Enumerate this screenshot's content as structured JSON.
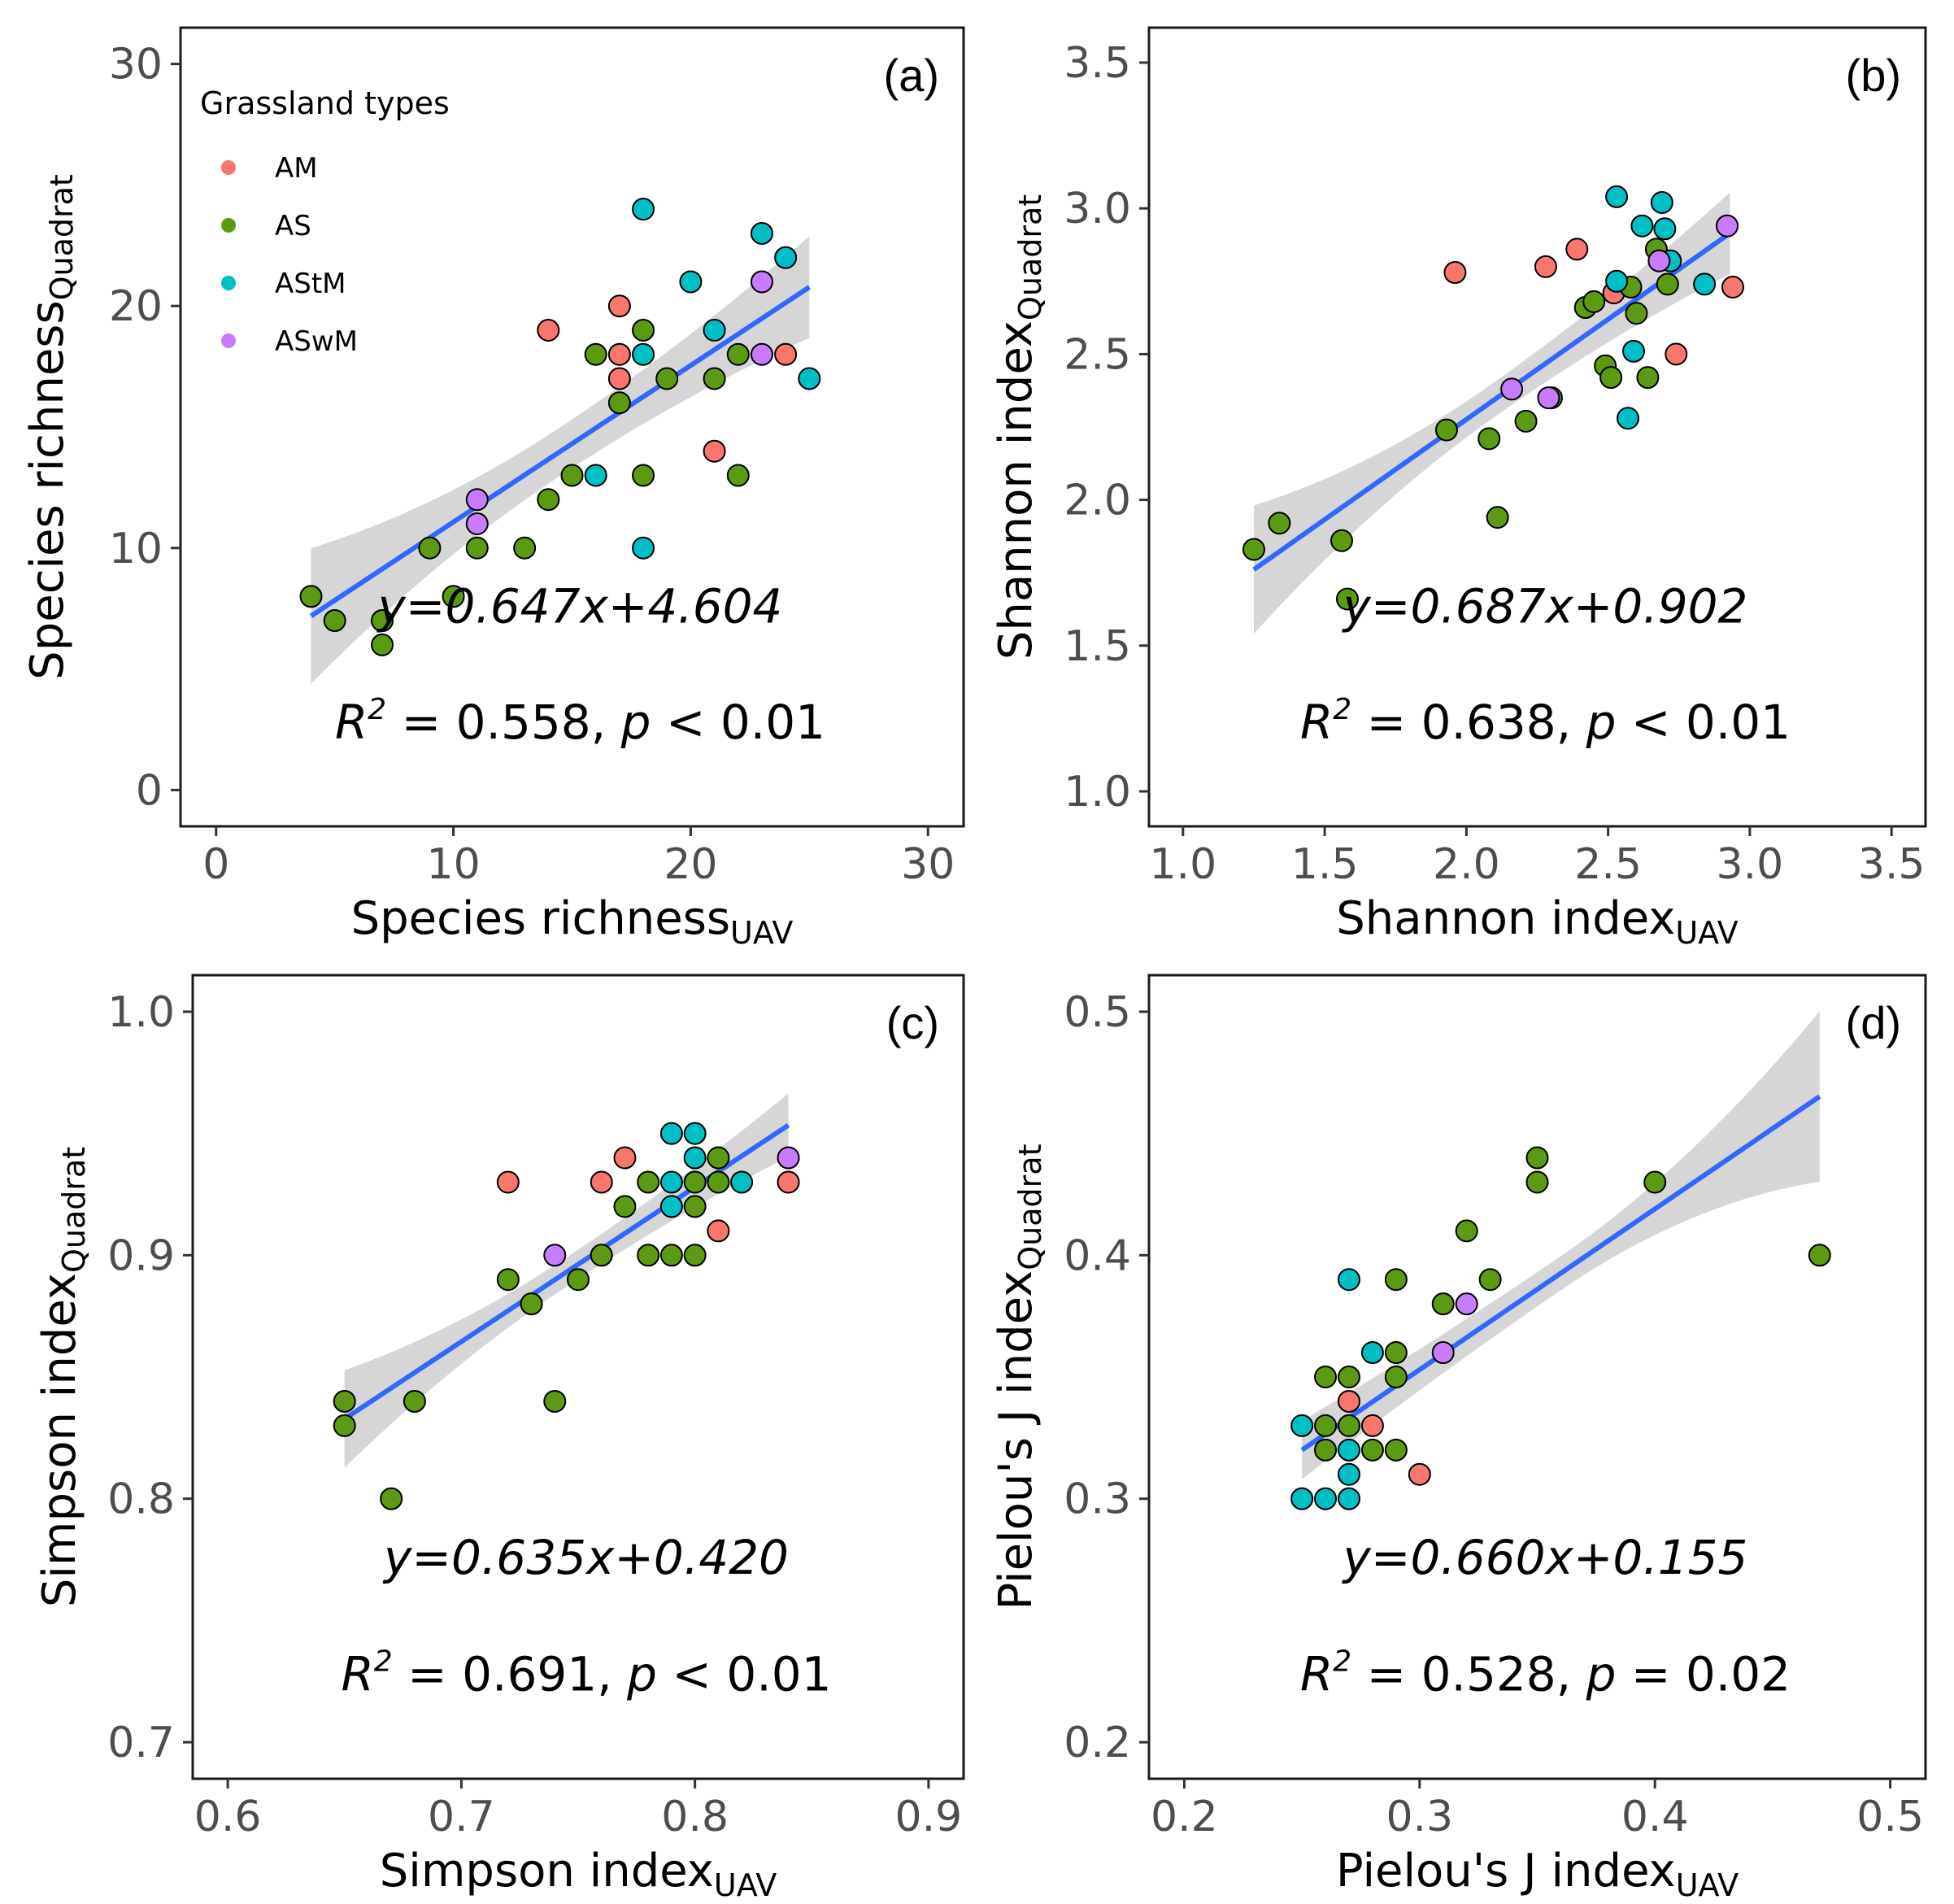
{
  "colors": {
    "AM": "#F8766D",
    "AS": "#5C9A14",
    "AStM": "#00BFC4",
    "ASwM": "#C77CFF",
    "fit": "#3366FF",
    "band": "#bdbdbd"
  },
  "legend": {
    "title": "Grassland types",
    "items": [
      "AM",
      "AS",
      "AStM",
      "ASwM"
    ]
  },
  "chart_data": [
    {
      "type": "scatter",
      "panel": "(a)",
      "xlabel": "Species richness",
      "xlabel_sub": "UAV",
      "ylabel": "Species richness",
      "ylabel_sub": "Quadrat",
      "xlim": [
        -1.5,
        31.5
      ],
      "ylim": [
        -1.5,
        31.5
      ],
      "xticks": [
        0,
        10,
        20,
        30
      ],
      "yticks": [
        0,
        10,
        20,
        30
      ],
      "x_tick_labels": [
        "0",
        "10",
        "20",
        "30"
      ],
      "y_tick_labels": [
        "0",
        "10",
        "20",
        "30"
      ],
      "equation": "y=0.647x+4.604",
      "stats": {
        "r2_label": "R",
        "r2_sup": "2",
        "r2_text": " = 0.558, ",
        "p_label": "p",
        "p_text": " < 0.01"
      },
      "fit": {
        "slope": 0.647,
        "intercept": 4.604,
        "x_range": [
          4,
          25
        ]
      },
      "band_halfwidth": [
        2.8,
        1.0,
        2.1
      ],
      "points": [
        {
          "x": 14,
          "y": 19,
          "type": "AM"
        },
        {
          "x": 17,
          "y": 20,
          "type": "AM"
        },
        {
          "x": 17,
          "y": 18,
          "type": "AM"
        },
        {
          "x": 17,
          "y": 17,
          "type": "AM"
        },
        {
          "x": 21,
          "y": 14,
          "type": "AM"
        },
        {
          "x": 24,
          "y": 18,
          "type": "AM"
        },
        {
          "x": 4,
          "y": 8,
          "type": "AS"
        },
        {
          "x": 5,
          "y": 7,
          "type": "AS"
        },
        {
          "x": 7,
          "y": 7,
          "type": "AS"
        },
        {
          "x": 7,
          "y": 6,
          "type": "AS"
        },
        {
          "x": 9,
          "y": 10,
          "type": "AS"
        },
        {
          "x": 10,
          "y": 8,
          "type": "AS"
        },
        {
          "x": 11,
          "y": 10,
          "type": "AS"
        },
        {
          "x": 13,
          "y": 10,
          "type": "AS"
        },
        {
          "x": 14,
          "y": 12,
          "type": "AS"
        },
        {
          "x": 15,
          "y": 13,
          "type": "AS"
        },
        {
          "x": 16,
          "y": 18,
          "type": "AS"
        },
        {
          "x": 17,
          "y": 16,
          "type": "AS"
        },
        {
          "x": 18,
          "y": 19,
          "type": "AS"
        },
        {
          "x": 18,
          "y": 13,
          "type": "AS"
        },
        {
          "x": 19,
          "y": 17,
          "type": "AS"
        },
        {
          "x": 21,
          "y": 17,
          "type": "AS"
        },
        {
          "x": 22,
          "y": 18,
          "type": "AS"
        },
        {
          "x": 22,
          "y": 13,
          "type": "AS"
        },
        {
          "x": 16,
          "y": 13,
          "type": "AStM"
        },
        {
          "x": 18,
          "y": 24,
          "type": "AStM"
        },
        {
          "x": 18,
          "y": 18,
          "type": "AStM"
        },
        {
          "x": 18,
          "y": 10,
          "type": "AStM"
        },
        {
          "x": 20,
          "y": 21,
          "type": "AStM"
        },
        {
          "x": 21,
          "y": 19,
          "type": "AStM"
        },
        {
          "x": 23,
          "y": 23,
          "type": "AStM"
        },
        {
          "x": 24,
          "y": 22,
          "type": "AStM"
        },
        {
          "x": 25,
          "y": 17,
          "type": "AStM"
        },
        {
          "x": 11,
          "y": 12,
          "type": "ASwM"
        },
        {
          "x": 11,
          "y": 11,
          "type": "ASwM"
        },
        {
          "x": 23,
          "y": 21,
          "type": "ASwM"
        },
        {
          "x": 23,
          "y": 18,
          "type": "ASwM"
        }
      ]
    },
    {
      "type": "scatter",
      "panel": "(b)",
      "xlabel": "Shannon index",
      "xlabel_sub": "UAV",
      "ylabel": "Shannon index",
      "ylabel_sub": "Quadrat",
      "xlim": [
        0.88,
        3.62
      ],
      "ylim": [
        0.88,
        3.62
      ],
      "xticks": [
        1.0,
        1.5,
        2.0,
        2.5,
        3.0,
        3.5
      ],
      "yticks": [
        1.0,
        1.5,
        2.0,
        2.5,
        3.0,
        3.5
      ],
      "x_tick_labels": [
        "1.0",
        "1.5",
        "2.0",
        "2.5",
        "3.0",
        "3.5"
      ],
      "y_tick_labels": [
        "1.0",
        "1.5",
        "2.0",
        "2.5",
        "3.0",
        "3.5"
      ],
      "equation": "y=0.687x+0.902",
      "stats": {
        "r2_label": "R",
        "r2_sup": "2",
        "r2_text": " = 0.638, ",
        "p_label": "p",
        "p_text": " < 0.01"
      },
      "fit": {
        "slope": 0.687,
        "intercept": 0.902,
        "x_range": [
          1.25,
          2.93
        ]
      },
      "band_halfwidth": [
        0.22,
        0.06,
        0.14
      ],
      "points": [
        {
          "x": 1.96,
          "y": 2.78,
          "type": "AM"
        },
        {
          "x": 2.28,
          "y": 2.8,
          "type": "AM"
        },
        {
          "x": 2.39,
          "y": 2.86,
          "type": "AM"
        },
        {
          "x": 2.52,
          "y": 2.71,
          "type": "AM"
        },
        {
          "x": 2.74,
          "y": 2.5,
          "type": "AM"
        },
        {
          "x": 2.94,
          "y": 2.73,
          "type": "AM"
        },
        {
          "x": 1.25,
          "y": 1.83,
          "type": "AS"
        },
        {
          "x": 1.34,
          "y": 1.92,
          "type": "AS"
        },
        {
          "x": 1.56,
          "y": 1.86,
          "type": "AS"
        },
        {
          "x": 1.58,
          "y": 1.66,
          "type": "AS"
        },
        {
          "x": 1.93,
          "y": 2.24,
          "type": "AS"
        },
        {
          "x": 2.08,
          "y": 2.21,
          "type": "AS"
        },
        {
          "x": 2.11,
          "y": 1.94,
          "type": "AS"
        },
        {
          "x": 2.21,
          "y": 2.27,
          "type": "AS"
        },
        {
          "x": 2.3,
          "y": 2.35,
          "type": "AS"
        },
        {
          "x": 2.42,
          "y": 2.66,
          "type": "AS"
        },
        {
          "x": 2.45,
          "y": 2.68,
          "type": "AS"
        },
        {
          "x": 2.49,
          "y": 2.46,
          "type": "AS"
        },
        {
          "x": 2.51,
          "y": 2.42,
          "type": "AS"
        },
        {
          "x": 2.58,
          "y": 2.73,
          "type": "AS"
        },
        {
          "x": 2.6,
          "y": 2.64,
          "type": "AS"
        },
        {
          "x": 2.64,
          "y": 2.42,
          "type": "AS"
        },
        {
          "x": 2.67,
          "y": 2.86,
          "type": "AS"
        },
        {
          "x": 2.71,
          "y": 2.74,
          "type": "AS"
        },
        {
          "x": 2.53,
          "y": 3.04,
          "type": "AStM"
        },
        {
          "x": 2.53,
          "y": 2.75,
          "type": "AStM"
        },
        {
          "x": 2.57,
          "y": 2.28,
          "type": "AStM"
        },
        {
          "x": 2.59,
          "y": 2.51,
          "type": "AStM"
        },
        {
          "x": 2.62,
          "y": 2.94,
          "type": "AStM"
        },
        {
          "x": 2.69,
          "y": 3.02,
          "type": "AStM"
        },
        {
          "x": 2.7,
          "y": 2.93,
          "type": "AStM"
        },
        {
          "x": 2.72,
          "y": 2.82,
          "type": "AStM"
        },
        {
          "x": 2.84,
          "y": 2.74,
          "type": "AStM"
        },
        {
          "x": 2.16,
          "y": 2.38,
          "type": "ASwM"
        },
        {
          "x": 2.29,
          "y": 2.35,
          "type": "ASwM"
        },
        {
          "x": 2.68,
          "y": 2.82,
          "type": "ASwM"
        },
        {
          "x": 2.92,
          "y": 2.94,
          "type": "ASwM"
        }
      ]
    },
    {
      "type": "scatter",
      "panel": "(c)",
      "xlabel": "Simpson index",
      "xlabel_sub": "UAV",
      "ylabel": "Simpson index",
      "ylabel_sub": "Quadrat",
      "xlim": [
        0.585,
        0.915
      ],
      "ylim": [
        0.685,
        1.015
      ],
      "xticks": [
        0.6,
        0.7,
        0.8,
        0.9
      ],
      "yticks": [
        0.7,
        0.8,
        0.9,
        1.0
      ],
      "x_tick_labels": [
        "0.6",
        "0.7",
        "0.8",
        "0.9"
      ],
      "y_tick_labels": [
        "0.7",
        "0.8",
        "0.9",
        "1.0"
      ],
      "equation": "y=0.635x+0.420",
      "stats": {
        "r2_label": "R",
        "r2_sup": "2",
        "r2_text": " = 0.691, ",
        "p_label": "p",
        "p_text": " < 0.01"
      },
      "fit": {
        "slope": 0.635,
        "intercept": 0.42,
        "x_range": [
          0.65,
          0.84
        ]
      },
      "band_halfwidth": [
        0.02,
        0.006,
        0.013
      ],
      "points": [
        {
          "x": 0.72,
          "y": 0.93,
          "type": "AM"
        },
        {
          "x": 0.76,
          "y": 0.93,
          "type": "AM"
        },
        {
          "x": 0.77,
          "y": 0.94,
          "type": "AM"
        },
        {
          "x": 0.81,
          "y": 0.91,
          "type": "AM"
        },
        {
          "x": 0.84,
          "y": 0.93,
          "type": "AM"
        },
        {
          "x": 0.65,
          "y": 0.84,
          "type": "AS"
        },
        {
          "x": 0.65,
          "y": 0.83,
          "type": "AS"
        },
        {
          "x": 0.67,
          "y": 0.8,
          "type": "AS"
        },
        {
          "x": 0.68,
          "y": 0.84,
          "type": "AS"
        },
        {
          "x": 0.72,
          "y": 0.89,
          "type": "AS"
        },
        {
          "x": 0.73,
          "y": 0.88,
          "type": "AS"
        },
        {
          "x": 0.74,
          "y": 0.84,
          "type": "AS"
        },
        {
          "x": 0.75,
          "y": 0.89,
          "type": "AS"
        },
        {
          "x": 0.76,
          "y": 0.9,
          "type": "AS"
        },
        {
          "x": 0.77,
          "y": 0.92,
          "type": "AS"
        },
        {
          "x": 0.78,
          "y": 0.93,
          "type": "AS"
        },
        {
          "x": 0.78,
          "y": 0.9,
          "type": "AS"
        },
        {
          "x": 0.79,
          "y": 0.9,
          "type": "AS"
        },
        {
          "x": 0.8,
          "y": 0.93,
          "type": "AS"
        },
        {
          "x": 0.8,
          "y": 0.92,
          "type": "AS"
        },
        {
          "x": 0.8,
          "y": 0.9,
          "type": "AS"
        },
        {
          "x": 0.81,
          "y": 0.94,
          "type": "AS"
        },
        {
          "x": 0.81,
          "y": 0.93,
          "type": "AS"
        },
        {
          "x": 0.79,
          "y": 0.95,
          "type": "AStM"
        },
        {
          "x": 0.79,
          "y": 0.93,
          "type": "AStM"
        },
        {
          "x": 0.79,
          "y": 0.92,
          "type": "AStM"
        },
        {
          "x": 0.8,
          "y": 0.95,
          "type": "AStM"
        },
        {
          "x": 0.8,
          "y": 0.94,
          "type": "AStM"
        },
        {
          "x": 0.82,
          "y": 0.93,
          "type": "AStM"
        },
        {
          "x": 0.74,
          "y": 0.9,
          "type": "ASwM"
        },
        {
          "x": 0.84,
          "y": 0.94,
          "type": "ASwM"
        }
      ]
    },
    {
      "type": "scatter",
      "panel": "(d)",
      "xlabel": "Pielou's J index",
      "xlabel_sub": "UAV",
      "ylabel": "Pielou's J index",
      "ylabel_sub": "Quadrat",
      "xlim": [
        0.185,
        0.515
      ],
      "ylim": [
        0.185,
        0.515
      ],
      "xticks": [
        0.2,
        0.3,
        0.4,
        0.5
      ],
      "yticks": [
        0.2,
        0.3,
        0.4,
        0.5
      ],
      "x_tick_labels": [
        "0.2",
        "0.3",
        "0.4",
        "0.5"
      ],
      "y_tick_labels": [
        "0.2",
        "0.3",
        "0.4",
        "0.5"
      ],
      "equation": "y=0.660x+0.155",
      "stats": {
        "r2_label": "R",
        "r2_sup": "2",
        "r2_text": " = 0.528, ",
        "p_label": "p",
        "p_text": " = 0.02"
      },
      "fit": {
        "slope": 0.66,
        "intercept": 0.155,
        "x_range": [
          0.25,
          0.47
        ]
      },
      "band_halfwidth": [
        0.012,
        0.007,
        0.035
      ],
      "points": [
        {
          "x": 0.27,
          "y": 0.34,
          "type": "AM"
        },
        {
          "x": 0.28,
          "y": 0.33,
          "type": "AM"
        },
        {
          "x": 0.3,
          "y": 0.31,
          "type": "AM"
        },
        {
          "x": 0.26,
          "y": 0.35,
          "type": "AS"
        },
        {
          "x": 0.26,
          "y": 0.33,
          "type": "AS"
        },
        {
          "x": 0.26,
          "y": 0.32,
          "type": "AS"
        },
        {
          "x": 0.27,
          "y": 0.35,
          "type": "AS"
        },
        {
          "x": 0.27,
          "y": 0.33,
          "type": "AS"
        },
        {
          "x": 0.28,
          "y": 0.32,
          "type": "AS"
        },
        {
          "x": 0.29,
          "y": 0.39,
          "type": "AS"
        },
        {
          "x": 0.29,
          "y": 0.36,
          "type": "AS"
        },
        {
          "x": 0.29,
          "y": 0.35,
          "type": "AS"
        },
        {
          "x": 0.29,
          "y": 0.32,
          "type": "AS"
        },
        {
          "x": 0.31,
          "y": 0.38,
          "type": "AS"
        },
        {
          "x": 0.32,
          "y": 0.41,
          "type": "AS"
        },
        {
          "x": 0.33,
          "y": 0.39,
          "type": "AS"
        },
        {
          "x": 0.35,
          "y": 0.44,
          "type": "AS"
        },
        {
          "x": 0.35,
          "y": 0.43,
          "type": "AS"
        },
        {
          "x": 0.4,
          "y": 0.43,
          "type": "AS"
        },
        {
          "x": 0.47,
          "y": 0.4,
          "type": "AS"
        },
        {
          "x": 0.25,
          "y": 0.33,
          "type": "AStM"
        },
        {
          "x": 0.25,
          "y": 0.3,
          "type": "AStM"
        },
        {
          "x": 0.26,
          "y": 0.3,
          "type": "AStM"
        },
        {
          "x": 0.27,
          "y": 0.39,
          "type": "AStM"
        },
        {
          "x": 0.27,
          "y": 0.32,
          "type": "AStM"
        },
        {
          "x": 0.27,
          "y": 0.31,
          "type": "AStM"
        },
        {
          "x": 0.27,
          "y": 0.3,
          "type": "AStM"
        },
        {
          "x": 0.28,
          "y": 0.36,
          "type": "AStM"
        },
        {
          "x": 0.31,
          "y": 0.36,
          "type": "ASwM"
        },
        {
          "x": 0.32,
          "y": 0.38,
          "type": "ASwM"
        }
      ]
    }
  ]
}
